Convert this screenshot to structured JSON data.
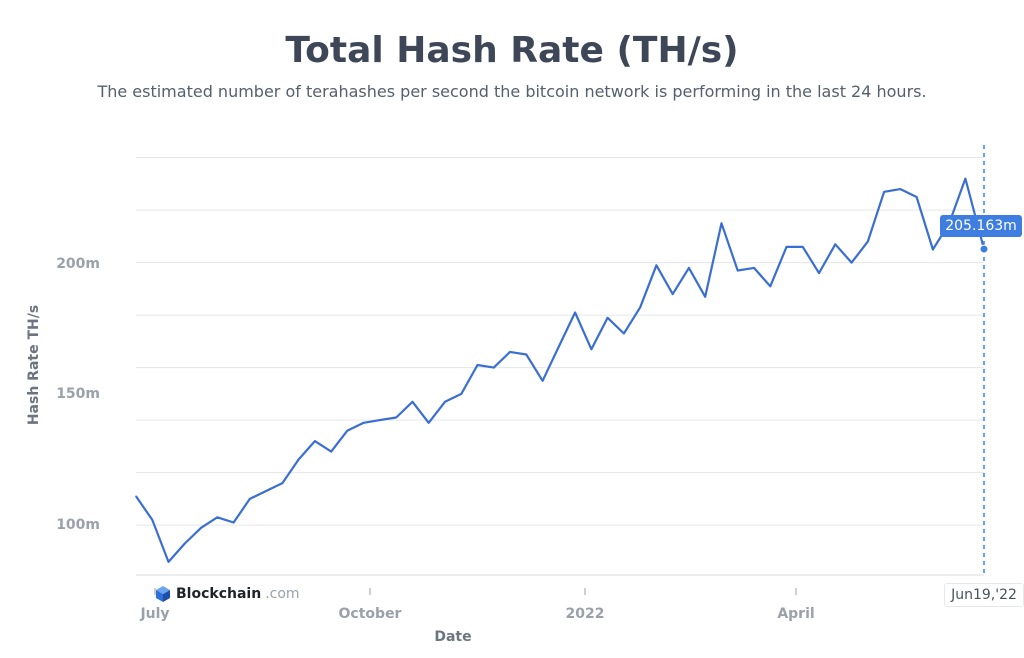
{
  "chart_data": {
    "type": "line",
    "title": "Total Hash Rate (TH/s)",
    "subtitle": "The estimated number of terahashes per second the bitcoin network is performing in the last 24 hours.",
    "xlabel": "Date",
    "ylabel": "Hash Rate TH/s",
    "y_unit": "m",
    "x_tick_labels": [
      "July",
      "October",
      "2022",
      "April"
    ],
    "y_ticks": [
      100,
      150,
      200
    ],
    "y_tick_labels": [
      "100m",
      "150m",
      "200m"
    ],
    "ylim": [
      81,
      241
    ],
    "grid": true,
    "line_color": "#3a6fd1",
    "accent_color": "#3d7ee0",
    "last_date_label": "Jun19,'22",
    "tooltip_value": "205.163m",
    "brand": {
      "name": "Blockchain",
      "suffix": ".com"
    },
    "series": [
      {
        "x": [
          "2021-06-19",
          "2021-06-26",
          "2021-07-03",
          "2021-07-10",
          "2021-07-17",
          "2021-07-24",
          "2021-07-31",
          "2021-08-07",
          "2021-08-14",
          "2021-08-21",
          "2021-08-28",
          "2021-09-04",
          "2021-09-11",
          "2021-09-18",
          "2021-09-25",
          "2021-10-02",
          "2021-10-09",
          "2021-10-16",
          "2021-10-23",
          "2021-10-30",
          "2021-11-06",
          "2021-11-13",
          "2021-11-20",
          "2021-11-27",
          "2021-12-04",
          "2021-12-11",
          "2021-12-18",
          "2021-12-25",
          "2022-01-01",
          "2022-01-08",
          "2022-01-15",
          "2022-01-22",
          "2022-01-29",
          "2022-02-05",
          "2022-02-12",
          "2022-02-19",
          "2022-02-26",
          "2022-03-05",
          "2022-03-12",
          "2022-03-19",
          "2022-03-26",
          "2022-04-02",
          "2022-04-09",
          "2022-04-16",
          "2022-04-23",
          "2022-04-30",
          "2022-05-07",
          "2022-05-14",
          "2022-05-21",
          "2022-05-28",
          "2022-06-04",
          "2022-06-11",
          "2022-06-19"
        ],
        "values": [
          111,
          102,
          86,
          93,
          99,
          103,
          101,
          110,
          113,
          116,
          125,
          132,
          128,
          136,
          139,
          140,
          141,
          147,
          139,
          147,
          150,
          161,
          160,
          166,
          165,
          155,
          168,
          181,
          167,
          179,
          173,
          183,
          199,
          188,
          198,
          187,
          215,
          197,
          198,
          191,
          206,
          206,
          196,
          207,
          200,
          208,
          227,
          228,
          225,
          205,
          215,
          232,
          205.163
        ]
      }
    ]
  }
}
